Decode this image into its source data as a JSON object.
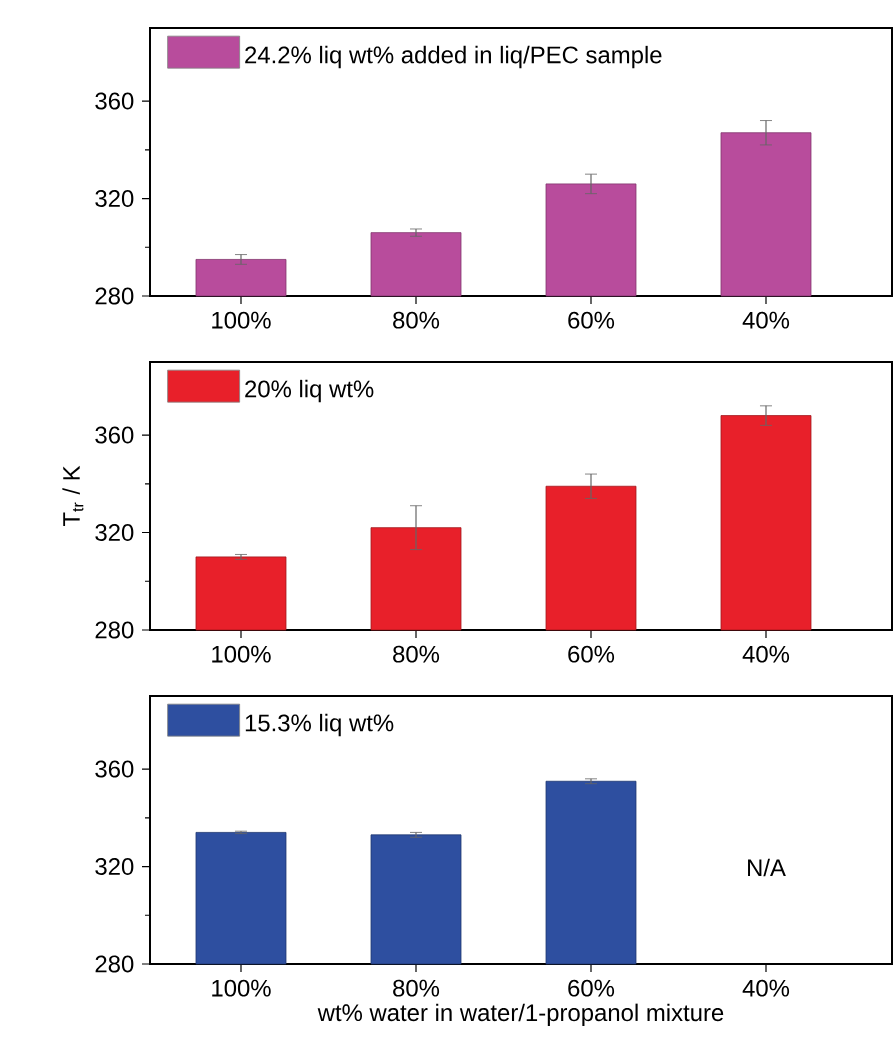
{
  "chart_data": [
    {
      "type": "bar",
      "categories": [
        "100%",
        "80%",
        "60%",
        "40%"
      ],
      "series": [
        {
          "name": "24.2% liq wt% added in liq/PEC sample",
          "color": "#b84c9c",
          "values": [
            295,
            306,
            326,
            347
          ],
          "errors": [
            2,
            1.5,
            4,
            5
          ]
        }
      ],
      "ylim": [
        280,
        390
      ],
      "yticks": [
        280,
        320,
        360
      ],
      "legend": "top left",
      "grid": false
    },
    {
      "type": "bar",
      "categories": [
        "100%",
        "80%",
        "60%",
        "40%"
      ],
      "series": [
        {
          "name": "20%  liq wt%",
          "color": "#e8202a",
          "values": [
            310,
            322,
            339,
            368
          ],
          "errors": [
            1,
            9,
            5,
            4
          ]
        }
      ],
      "ylim": [
        280,
        390
      ],
      "yticks": [
        280,
        320,
        360
      ],
      "ylabel": "T$_{tr}$ / K",
      "legend": "top left",
      "grid": false
    },
    {
      "type": "bar",
      "categories": [
        "100%",
        "80%",
        "60%",
        "40%"
      ],
      "series": [
        {
          "name": "15.3%  liq wt%",
          "color": "#2e4fa0",
          "values": [
            334,
            333,
            355,
            null
          ],
          "errors": [
            0.5,
            1,
            1,
            null
          ]
        }
      ],
      "ylim": [
        280,
        390
      ],
      "yticks": [
        280,
        320,
        360
      ],
      "xlabel": "wt% water in water/1-propanol mixture",
      "legend": "top left",
      "grid": false,
      "annotations": [
        "N/A"
      ]
    }
  ]
}
